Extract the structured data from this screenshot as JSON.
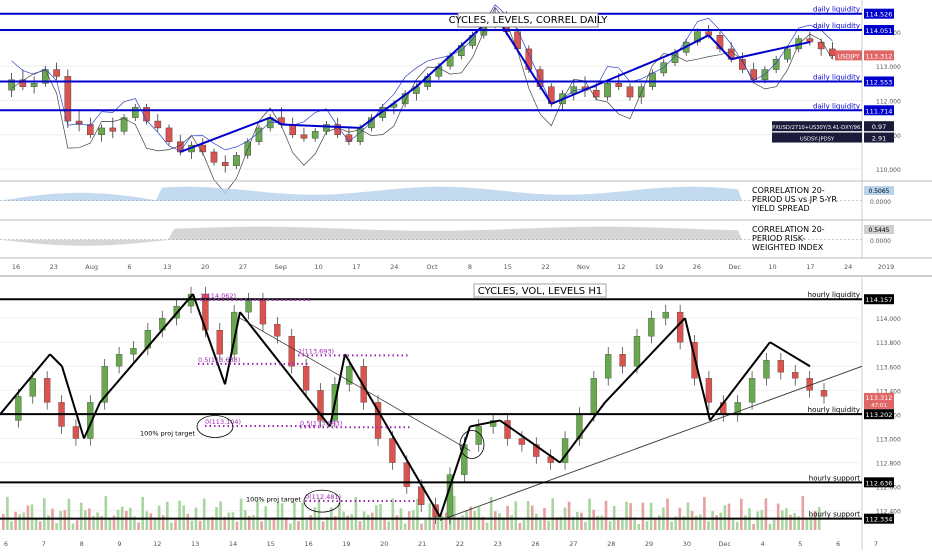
{
  "top": {
    "title": "CYCLES, LEVELS, CORREL DAILY",
    "liquidity_label": "daily liquidity",
    "levels": [
      114.526,
      114.051,
      112.553,
      111.714
    ],
    "price_ticks": [
      {
        "v": 114.0,
        "t": "114.000"
      },
      {
        "v": 113.0,
        "t": "113.000"
      },
      {
        "v": 112.0,
        "t": "112.000"
      },
      {
        "v": 111.0,
        "t": "111.000"
      },
      {
        "v": 110.0,
        "t": "110.000"
      }
    ],
    "ylim": [
      109.8,
      114.75
    ],
    "last_price": {
      "label": "USDJPY",
      "value": "113.312",
      "v": 113.312
    },
    "legend": [
      {
        "label": "SPXUSD/2710+US30Y/3.41-DXY/96.5",
        "value": "0.97",
        "v": 111.25
      },
      {
        "label": "USDSY-JPDSY",
        "value": "2.91",
        "v": 110.92
      }
    ],
    "candles": [
      [
        112.3,
        112.8,
        112.1,
        112.6
      ],
      [
        112.6,
        112.9,
        112.3,
        112.4
      ],
      [
        112.4,
        112.7,
        112.2,
        112.5
      ],
      [
        112.5,
        113.0,
        112.4,
        112.9
      ],
      [
        112.9,
        113.1,
        112.6,
        112.7
      ],
      [
        112.7,
        112.9,
        111.2,
        111.4
      ],
      [
        111.4,
        111.7,
        111.1,
        111.3
      ],
      [
        111.3,
        111.5,
        110.9,
        111.0
      ],
      [
        111.0,
        111.3,
        110.8,
        111.2
      ],
      [
        111.2,
        111.5,
        110.9,
        111.1
      ],
      [
        111.1,
        111.6,
        111.0,
        111.5
      ],
      [
        111.5,
        111.9,
        111.4,
        111.8
      ],
      [
        111.8,
        111.9,
        111.3,
        111.4
      ],
      [
        111.4,
        111.6,
        111.1,
        111.2
      ],
      [
        111.2,
        111.3,
        110.7,
        110.8
      ],
      [
        110.8,
        111.0,
        110.4,
        110.5
      ],
      [
        110.5,
        110.8,
        110.3,
        110.7
      ],
      [
        110.7,
        110.9,
        110.4,
        110.5
      ],
      [
        110.5,
        110.6,
        110.1,
        110.2
      ],
      [
        110.2,
        110.4,
        109.9,
        110.1
      ],
      [
        110.1,
        110.5,
        110.0,
        110.4
      ],
      [
        110.4,
        110.9,
        110.3,
        110.8
      ],
      [
        110.8,
        111.3,
        110.7,
        111.2
      ],
      [
        111.2,
        111.6,
        111.1,
        111.5
      ],
      [
        111.5,
        111.8,
        111.2,
        111.3
      ],
      [
        111.3,
        111.5,
        110.9,
        111.0
      ],
      [
        111.0,
        111.2,
        110.8,
        110.9
      ],
      [
        110.9,
        111.2,
        110.8,
        111.1
      ],
      [
        111.1,
        111.4,
        111.0,
        111.3
      ],
      [
        111.3,
        111.5,
        110.9,
        111.0
      ],
      [
        111.0,
        111.2,
        110.7,
        110.8
      ],
      [
        110.8,
        111.3,
        110.7,
        111.2
      ],
      [
        111.2,
        111.6,
        111.1,
        111.5
      ],
      [
        111.5,
        111.9,
        111.4,
        111.8
      ],
      [
        111.8,
        112.0,
        111.6,
        111.9
      ],
      [
        111.9,
        112.3,
        111.8,
        112.2
      ],
      [
        112.2,
        112.5,
        112.0,
        112.4
      ],
      [
        112.4,
        112.8,
        112.3,
        112.7
      ],
      [
        112.7,
        113.1,
        112.6,
        113.0
      ],
      [
        113.0,
        113.4,
        112.9,
        113.3
      ],
      [
        113.3,
        113.7,
        113.2,
        113.6
      ],
      [
        113.6,
        114.0,
        113.5,
        113.9
      ],
      [
        113.9,
        114.3,
        113.8,
        114.2
      ],
      [
        114.2,
        114.7,
        114.1,
        114.5
      ],
      [
        114.5,
        114.6,
        113.9,
        114.0
      ],
      [
        114.0,
        114.1,
        113.4,
        113.5
      ],
      [
        113.5,
        113.6,
        112.8,
        112.9
      ],
      [
        112.9,
        113.0,
        112.3,
        112.4
      ],
      [
        112.4,
        112.5,
        111.8,
        111.9
      ],
      [
        111.9,
        112.3,
        111.7,
        112.2
      ],
      [
        112.2,
        112.6,
        112.0,
        112.4
      ],
      [
        112.4,
        112.7,
        112.1,
        112.3
      ],
      [
        112.3,
        112.5,
        112.0,
        112.1
      ],
      [
        112.1,
        112.6,
        112.0,
        112.5
      ],
      [
        112.5,
        112.8,
        112.3,
        112.4
      ],
      [
        112.4,
        112.5,
        112.0,
        112.1
      ],
      [
        112.1,
        112.5,
        111.9,
        112.4
      ],
      [
        112.4,
        112.9,
        112.3,
        112.8
      ],
      [
        112.8,
        113.2,
        112.7,
        113.1
      ],
      [
        113.1,
        113.5,
        113.0,
        113.4
      ],
      [
        113.4,
        113.8,
        113.3,
        113.7
      ],
      [
        113.7,
        114.1,
        113.6,
        114.0
      ],
      [
        114.0,
        114.2,
        113.8,
        113.9
      ],
      [
        113.9,
        114.0,
        113.4,
        113.5
      ],
      [
        113.5,
        113.7,
        113.1,
        113.2
      ],
      [
        113.2,
        113.4,
        112.8,
        112.9
      ],
      [
        112.9,
        113.1,
        112.5,
        112.6
      ],
      [
        112.6,
        113.0,
        112.5,
        112.9
      ],
      [
        112.9,
        113.3,
        112.8,
        113.2
      ],
      [
        113.2,
        113.6,
        113.1,
        113.5
      ],
      [
        113.5,
        113.9,
        113.4,
        113.8
      ],
      [
        113.8,
        114.0,
        113.6,
        113.7
      ],
      [
        113.7,
        113.8,
        113.3,
        113.5
      ],
      [
        113.5,
        113.7,
        113.2,
        113.3
      ]
    ],
    "corr_panels": [
      {
        "label": "CORRELATION 20-PERIOD US vs JP 5-YR YIELD SPREAD",
        "lines": [
          "CORRELATION 20-",
          "PERIOD US vs JP 5-YR",
          "YIELD SPREAD"
        ],
        "value": "0.5065",
        "zero": "0.0000",
        "color": "#b8d4ec"
      },
      {
        "label": "CORRELATION 20-PERIOD RISK-WEIGHTED INDEX",
        "lines": [
          "CORRELATION 20-",
          "PERIOD RISK-",
          "WEIGHTED INDEX"
        ],
        "value": "0.5445",
        "zero": "0.0000",
        "color": "#cfcfcf"
      }
    ],
    "x_axis": [
      "16",
      "23",
      "Aug",
      "6",
      "13",
      "20",
      "27",
      "Sep",
      "10",
      "17",
      "24",
      "Oct",
      "8",
      "15",
      "22",
      "Nov",
      "12",
      "19",
      "26",
      "Dec",
      "10",
      "17",
      "24",
      "2019"
    ]
  },
  "bottom": {
    "title": "CYCLES, VOL, LEVELS H1",
    "ylim": [
      112.24,
      114.3
    ],
    "price_ticks": [
      {
        "v": 114.0,
        "t": "114.000"
      },
      {
        "v": 113.8,
        "t": "113.800"
      },
      {
        "v": 113.6,
        "t": "113.600"
      },
      {
        "v": 113.4,
        "t": "113.400"
      },
      {
        "v": 113.2,
        "t": "113.200"
      },
      {
        "v": 113.0,
        "t": "113.000"
      },
      {
        "v": 112.8,
        "t": "112.800"
      },
      {
        "v": 112.6,
        "t": "112.600"
      },
      {
        "v": 112.4,
        "t": "112.400"
      }
    ],
    "levels": [
      {
        "v": 114.157,
        "label": "hourly liquidity",
        "tag": "114.157"
      },
      {
        "v": 113.202,
        "label": "hourly liquidity",
        "tag": "113.202"
      },
      {
        "v": 112.636,
        "label": "hourly support",
        "tag": "112.636"
      },
      {
        "v": 112.334,
        "label": "hourly support",
        "tag": "112.334"
      }
    ],
    "last_price": {
      "value": "113.312",
      "v": 113.312,
      "sub": "47:01"
    },
    "fib_labels": [
      {
        "text": "1(114.062)",
        "v": 114.15
      },
      {
        "text": "0.5(113.633)",
        "v": 113.62
      },
      {
        "text": "1(113.693)",
        "v": 113.69
      },
      {
        "text": "0(113.104)",
        "v": 113.104
      },
      {
        "text": "0.5(113.093)",
        "v": 113.093
      },
      {
        "text": "0(112.481)",
        "v": 112.481
      }
    ],
    "targets": [
      {
        "text": "100% proj target",
        "v": 113.05
      },
      {
        "text": "100% proj target",
        "v": 112.5
      }
    ],
    "x_axis": [
      "6",
      "7",
      "8",
      "9",
      "12",
      "13",
      "14",
      "15",
      "16",
      "19",
      "20",
      "21",
      "22",
      "23",
      "26",
      "27",
      "28",
      "29",
      "30",
      "Dec",
      "4",
      "5",
      "6",
      "7"
    ]
  },
  "colors": {
    "up": "#6aa84f",
    "down": "#d9534f",
    "level": "#0000cc",
    "black": "#000000",
    "fib": "#9c27b0",
    "accent": "#e06666"
  }
}
